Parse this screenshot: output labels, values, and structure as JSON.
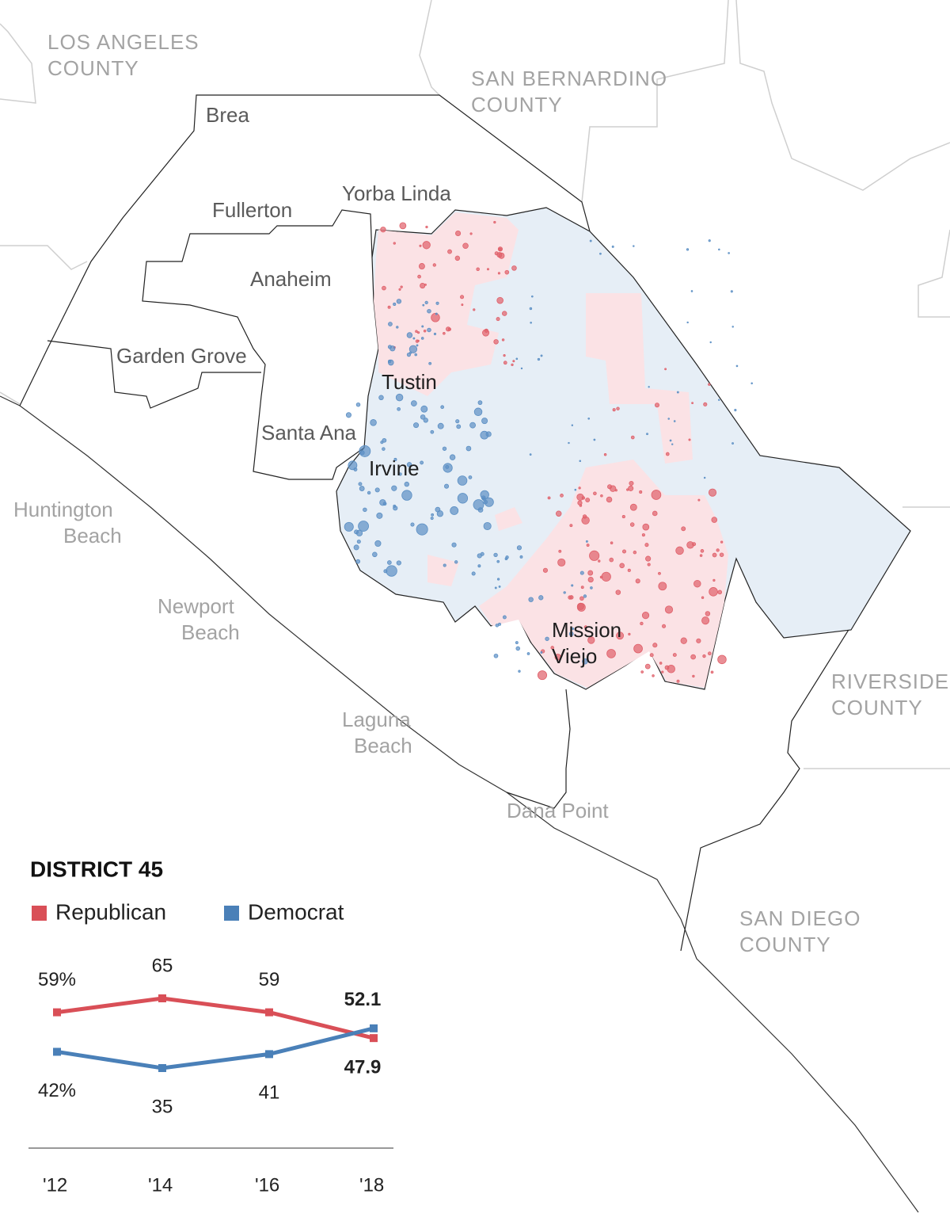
{
  "map": {
    "labels": [
      {
        "lines": [
          "LOS ANGELES",
          "COUNTY"
        ]
      },
      {
        "lines": [
          "SAN BERNARDINO",
          "COUNTY"
        ]
      },
      {
        "lines": [
          "RIVERSIDE",
          "COUNTY"
        ]
      },
      {
        "lines": [
          "SAN DIEGO",
          "COUNTY"
        ]
      },
      {
        "lines": [
          "Huntington",
          "Beach"
        ]
      },
      {
        "lines": [
          "Newport",
          "Beach"
        ]
      },
      {
        "lines": [
          "Laguna",
          "Beach"
        ]
      },
      {
        "lines": [
          "Dana Point"
        ]
      },
      {
        "lines": [
          "Brea"
        ]
      },
      {
        "lines": [
          "Fullerton"
        ]
      },
      {
        "lines": [
          "Yorba Linda"
        ]
      },
      {
        "lines": [
          "Anaheim"
        ]
      },
      {
        "lines": [
          "Garden Grove"
        ]
      },
      {
        "lines": [
          "Santa Ana"
        ]
      },
      {
        "lines": [
          "Tustin"
        ]
      },
      {
        "lines": [
          "Irvine"
        ]
      },
      {
        "lines": [
          "Mission",
          "Viejo"
        ]
      }
    ]
  },
  "chart_data": {
    "type": "line",
    "title": "DISTRICT 45",
    "categories": [
      "'12",
      "'14",
      "'16",
      "'18"
    ],
    "series": [
      {
        "name": "Republican",
        "color": "#d94f57",
        "values": [
          59,
          65,
          59,
          47.9
        ],
        "value_labels": [
          "59%",
          "65",
          "59",
          "47.9"
        ]
      },
      {
        "name": "Democrat",
        "color": "#4a80b8",
        "values": [
          42,
          35,
          41,
          52.1
        ],
        "value_labels": [
          "42%",
          "35",
          "41",
          "52.1"
        ]
      }
    ]
  }
}
